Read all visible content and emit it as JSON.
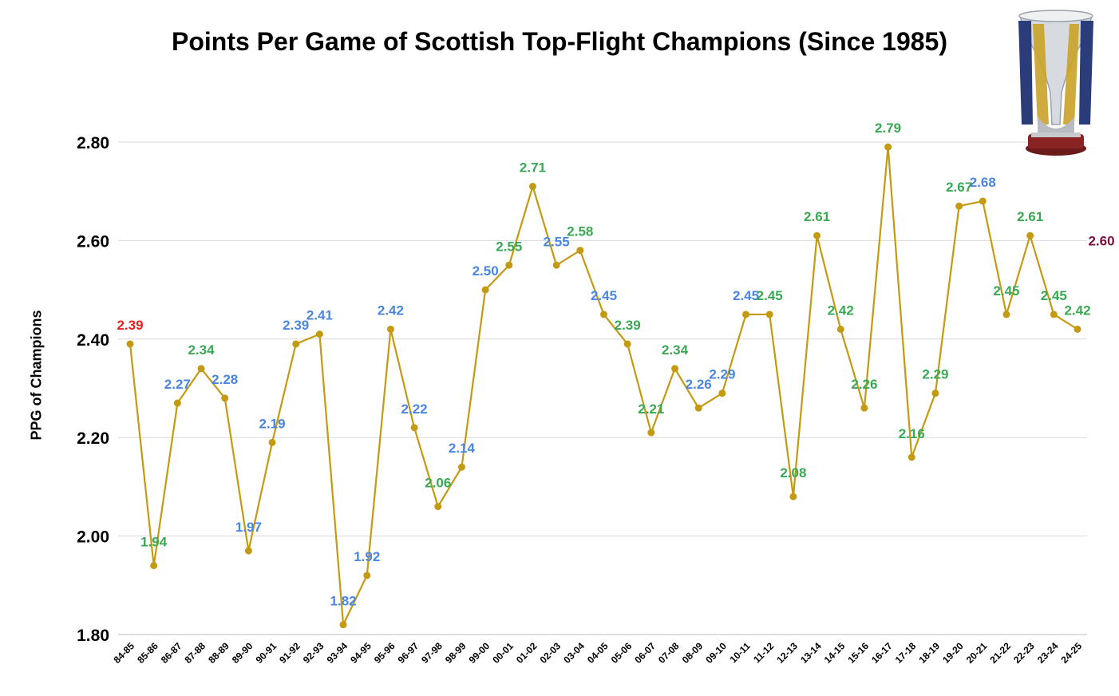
{
  "chart_data": {
    "type": "line",
    "title": "Points Per Game of Scottish Top-Flight Champions (Since 1985)",
    "xlabel": "",
    "ylabel": "PPG of Champions",
    "ylim": [
      1.8,
      2.8
    ],
    "yticks": [
      "1.80",
      "2.00",
      "2.20",
      "2.40",
      "2.60",
      "2.80"
    ],
    "grid": true,
    "categories": [
      "84-85",
      "85-86",
      "86-87",
      "87-88",
      "88-89",
      "89-90",
      "90-91",
      "91-92",
      "92-93",
      "93-94",
      "94-95",
      "95-96",
      "96-97",
      "97-98",
      "98-99",
      "99-00",
      "00-01",
      "01-02",
      "02-03",
      "03-04",
      "04-05",
      "05-06",
      "06-07",
      "07-08",
      "08-09",
      "09-10",
      "10-11",
      "11-12",
      "12-13",
      "13-14",
      "14-15",
      "15-16",
      "16-17",
      "17-18",
      "18-19",
      "19-20",
      "20-21",
      "21-22",
      "22-23",
      "23-24",
      "24-25"
    ],
    "values": [
      2.39,
      1.94,
      2.27,
      2.34,
      2.28,
      1.97,
      2.19,
      2.39,
      2.41,
      1.82,
      1.92,
      2.42,
      2.22,
      2.06,
      2.14,
      2.5,
      2.55,
      2.71,
      2.55,
      2.58,
      2.45,
      2.39,
      2.21,
      2.34,
      2.26,
      2.29,
      2.45,
      2.45,
      2.08,
      2.61,
      2.42,
      2.26,
      2.79,
      2.16,
      2.29,
      2.67,
      2.68,
      2.45,
      2.61,
      2.45,
      2.42
    ],
    "labels": [
      "2.39",
      "1.94",
      "2.27",
      "2.34",
      "2.28",
      "1.97",
      "2.19",
      "2.39",
      "2.41",
      "1.82",
      "1.92",
      "2.42",
      "2.22",
      "2.06",
      "2.14",
      "2.50",
      "2.55",
      "2.71",
      "2.55",
      "2.58",
      "2.45",
      "2.39",
      "2.21",
      "2.34",
      "2.26",
      "2.29",
      "2.45",
      "2.45",
      "2.08",
      "2.61",
      "2.42",
      "2.26",
      "2.79",
      "2.16",
      "2.29",
      "2.67",
      "2.68",
      "2.45",
      "2.61",
      "2.45",
      "2.42"
    ],
    "label_colors": [
      "#e8211e",
      "#3aa853",
      "#4a86e0",
      "#3aa853",
      "#4a86e0",
      "#4a86e0",
      "#4a86e0",
      "#4a86e0",
      "#4a86e0",
      "#4a86e0",
      "#4a86e0",
      "#4a86e0",
      "#4a86e0",
      "#3aa853",
      "#4a86e0",
      "#4a86e0",
      "#3aa853",
      "#3aa853",
      "#4a86e0",
      "#3aa853",
      "#4a86e0",
      "#3aa853",
      "#3aa853",
      "#3aa853",
      "#4a86e0",
      "#4a86e0",
      "#4a86e0",
      "#3aa853",
      "#3aa853",
      "#3aa853",
      "#3aa853",
      "#3aa853",
      "#3aa853",
      "#3aa853",
      "#3aa853",
      "#3aa853",
      "#4a86e0",
      "#3aa853",
      "#3aa853",
      "#3aa853",
      "#3aa853"
    ],
    "line_color": "#c49a12",
    "grid_color": "#d9d9d9",
    "annotation": {
      "text": "2.60",
      "color": "#7a1040"
    }
  }
}
